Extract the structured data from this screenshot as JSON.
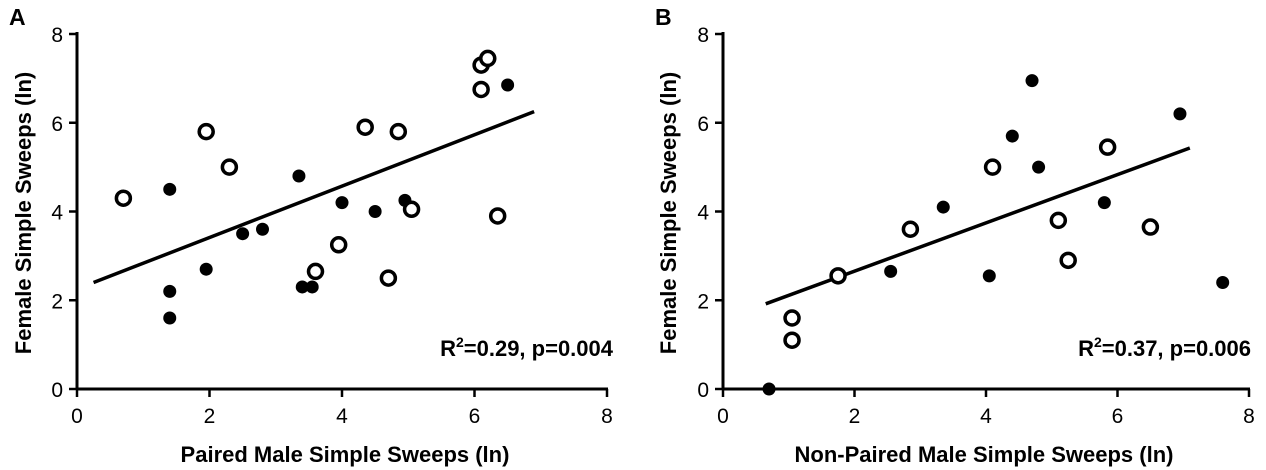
{
  "chart_data": [
    {
      "type": "scatter",
      "panel": "A",
      "xlabel": "Paired Male Simple Sweeps (ln)",
      "ylabel": "Female Simple Sweeps (ln)",
      "xlim": [
        0,
        8
      ],
      "ylim": [
        0,
        8
      ],
      "xticks": [
        "0",
        "2",
        "4",
        "6",
        "8"
      ],
      "yticks": [
        "0",
        "2",
        "4",
        "6",
        "8"
      ],
      "stats": {
        "r2_prefix": "R",
        "r2_exp": "2",
        "text": "=0.29, p=0.004"
      },
      "fit_line": {
        "x": [
          0.25,
          6.9
        ],
        "y": [
          2.4,
          6.25
        ]
      },
      "series": [
        {
          "marker": "filled",
          "points": [
            [
              1.4,
              4.5
            ],
            [
              1.4,
              2.2
            ],
            [
              1.4,
              1.6
            ],
            [
              1.95,
              2.7
            ],
            [
              2.5,
              3.5
            ],
            [
              2.8,
              3.6
            ],
            [
              3.35,
              4.8
            ],
            [
              3.4,
              2.3
            ],
            [
              3.55,
              2.3
            ],
            [
              4.0,
              4.2
            ],
            [
              4.5,
              4.0
            ],
            [
              4.95,
              4.25
            ],
            [
              6.5,
              6.85
            ]
          ]
        },
        {
          "marker": "open",
          "points": [
            [
              0.7,
              4.3
            ],
            [
              1.95,
              5.8
            ],
            [
              2.3,
              5.0
            ],
            [
              3.6,
              2.65
            ],
            [
              3.95,
              3.25
            ],
            [
              4.35,
              5.9
            ],
            [
              4.7,
              2.5
            ],
            [
              4.85,
              5.8
            ],
            [
              5.05,
              4.05
            ],
            [
              6.1,
              7.3
            ],
            [
              6.2,
              7.45
            ],
            [
              6.1,
              6.75
            ],
            [
              6.35,
              3.9
            ]
          ]
        }
      ]
    },
    {
      "type": "scatter",
      "panel": "B",
      "xlabel": "Non-Paired Male Simple Sweeps (ln)",
      "ylabel": "Female Simple Sweeps (ln)",
      "xlim": [
        0,
        8
      ],
      "ylim": [
        0,
        8
      ],
      "xticks": [
        "0",
        "2",
        "4",
        "6",
        "8"
      ],
      "yticks": [
        "0",
        "2",
        "4",
        "6",
        "8"
      ],
      "stats": {
        "r2_prefix": "R",
        "r2_exp": "2",
        "text": "=0.37, p=0.006"
      },
      "fit_line": {
        "x": [
          0.65,
          7.1
        ],
        "y": [
          1.92,
          5.43
        ]
      },
      "series": [
        {
          "marker": "filled",
          "points": [
            [
              0.7,
              0.0
            ],
            [
              2.55,
              2.65
            ],
            [
              3.35,
              4.1
            ],
            [
              4.05,
              2.55
            ],
            [
              4.4,
              5.7
            ],
            [
              4.7,
              6.95
            ],
            [
              4.8,
              5.0
            ],
            [
              5.8,
              4.2
            ],
            [
              6.95,
              6.2
            ],
            [
              7.6,
              2.4
            ]
          ]
        },
        {
          "marker": "open",
          "points": [
            [
              1.05,
              1.6
            ],
            [
              1.05,
              1.1
            ],
            [
              1.75,
              2.55
            ],
            [
              2.85,
              3.6
            ],
            [
              4.1,
              5.0
            ],
            [
              5.1,
              3.8
            ],
            [
              5.25,
              2.9
            ],
            [
              5.85,
              5.45
            ],
            [
              6.5,
              3.65
            ]
          ]
        }
      ]
    }
  ]
}
